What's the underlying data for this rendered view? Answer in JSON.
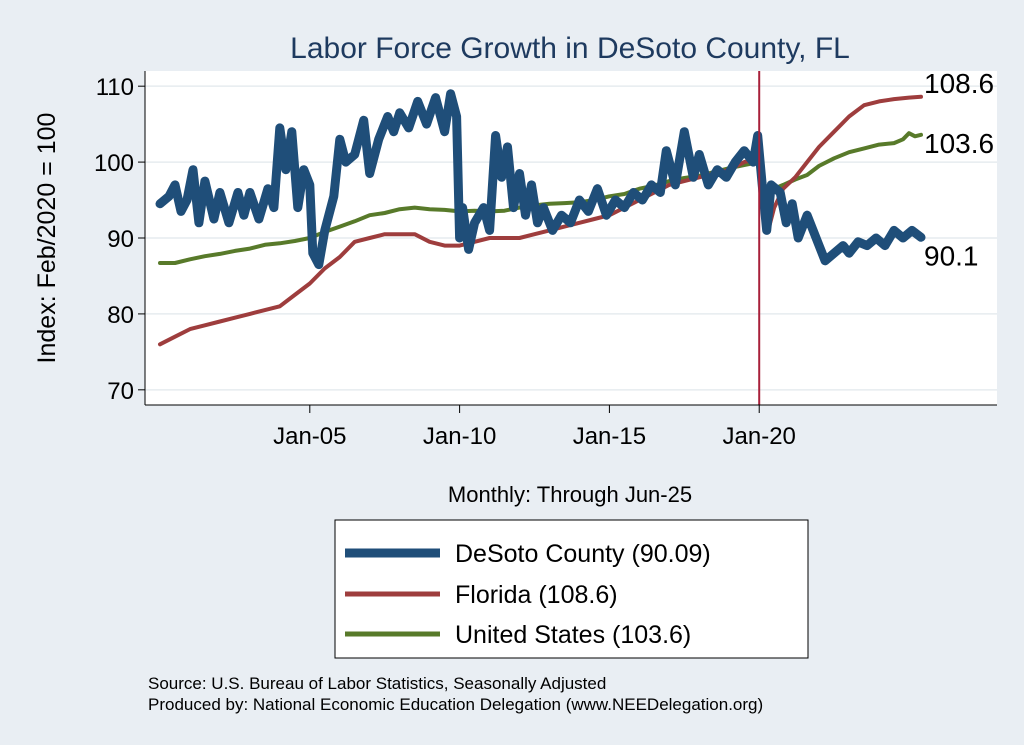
{
  "chart_data": {
    "type": "line",
    "title": "Labor Force Growth in DeSoto  County, FL",
    "ylabel": "Index: Feb/2020 = 100",
    "xlabel": "Monthly: Through Jun-25",
    "ylim": [
      68,
      112
    ],
    "yticks": [
      70,
      80,
      90,
      100,
      110
    ],
    "xticks": [
      {
        "label": "Jan-05",
        "year": 2005.0
      },
      {
        "label": "Jan-10",
        "year": 2010.0
      },
      {
        "label": "Jan-15",
        "year": 2015.0
      },
      {
        "label": "Jan-20",
        "year": 2020.0
      }
    ],
    "xlim": [
      2000.0,
      2028.4
    ],
    "reference_line": {
      "year": 2020.0,
      "color": "#a8203a"
    },
    "grid": true,
    "legend_position": "bottom",
    "series": [
      {
        "name": "DeSoto  County (90.09)",
        "end_label": "90.1",
        "color": "#1f4e79",
        "width": 9,
        "points": [
          [
            2000.0,
            94.5
          ],
          [
            2000.3,
            95.5
          ],
          [
            2000.5,
            97
          ],
          [
            2000.7,
            93.5
          ],
          [
            2000.9,
            95
          ],
          [
            2001.1,
            99
          ],
          [
            2001.3,
            92
          ],
          [
            2001.5,
            97.5
          ],
          [
            2001.8,
            92.5
          ],
          [
            2002.0,
            96
          ],
          [
            2002.3,
            92
          ],
          [
            2002.6,
            96
          ],
          [
            2002.8,
            93
          ],
          [
            2003.0,
            96
          ],
          [
            2003.3,
            92.5
          ],
          [
            2003.6,
            96.5
          ],
          [
            2003.8,
            94
          ],
          [
            2004.0,
            104.5
          ],
          [
            2004.2,
            99
          ],
          [
            2004.4,
            104
          ],
          [
            2004.6,
            94
          ],
          [
            2004.8,
            99
          ],
          [
            2005.0,
            97
          ],
          [
            2005.1,
            88
          ],
          [
            2005.3,
            86.5
          ],
          [
            2005.5,
            91
          ],
          [
            2005.8,
            95.5
          ],
          [
            2006.0,
            103
          ],
          [
            2006.2,
            100
          ],
          [
            2006.5,
            101
          ],
          [
            2006.8,
            105.5
          ],
          [
            2007.0,
            98.5
          ],
          [
            2007.3,
            103
          ],
          [
            2007.6,
            106
          ],
          [
            2007.8,
            104
          ],
          [
            2008.0,
            106.5
          ],
          [
            2008.3,
            104.5
          ],
          [
            2008.6,
            108
          ],
          [
            2008.9,
            105
          ],
          [
            2009.2,
            108.5
          ],
          [
            2009.5,
            104
          ],
          [
            2009.7,
            109
          ],
          [
            2009.9,
            106
          ],
          [
            2010.0,
            90
          ],
          [
            2010.1,
            94
          ],
          [
            2010.3,
            88.5
          ],
          [
            2010.5,
            92
          ],
          [
            2010.8,
            94
          ],
          [
            2011.0,
            91
          ],
          [
            2011.2,
            103.5
          ],
          [
            2011.4,
            98
          ],
          [
            2011.6,
            102
          ],
          [
            2011.8,
            94
          ],
          [
            2012.0,
            98.5
          ],
          [
            2012.2,
            93
          ],
          [
            2012.4,
            97
          ],
          [
            2012.6,
            92
          ],
          [
            2012.8,
            94
          ],
          [
            2013.1,
            91
          ],
          [
            2013.4,
            93
          ],
          [
            2013.7,
            92
          ],
          [
            2014.0,
            95
          ],
          [
            2014.3,
            93.5
          ],
          [
            2014.6,
            96.5
          ],
          [
            2014.9,
            93
          ],
          [
            2015.2,
            95
          ],
          [
            2015.5,
            94
          ],
          [
            2015.8,
            96
          ],
          [
            2016.1,
            95
          ],
          [
            2016.4,
            97
          ],
          [
            2016.7,
            96
          ],
          [
            2016.9,
            101.5
          ],
          [
            2017.2,
            97
          ],
          [
            2017.5,
            104
          ],
          [
            2017.8,
            98
          ],
          [
            2018.0,
            101
          ],
          [
            2018.3,
            97
          ],
          [
            2018.6,
            99
          ],
          [
            2018.9,
            98
          ],
          [
            2019.2,
            100
          ],
          [
            2019.5,
            101.5
          ],
          [
            2019.8,
            100
          ],
          [
            2019.95,
            103.5
          ],
          [
            2020.1,
            97
          ],
          [
            2020.25,
            91
          ],
          [
            2020.4,
            97
          ],
          [
            2020.7,
            96
          ],
          [
            2020.9,
            92
          ],
          [
            2021.1,
            94.5
          ],
          [
            2021.3,
            90
          ],
          [
            2021.6,
            93
          ],
          [
            2021.8,
            91
          ],
          [
            2022.0,
            89
          ],
          [
            2022.2,
            87
          ],
          [
            2022.5,
            88
          ],
          [
            2022.8,
            89
          ],
          [
            2023.0,
            88
          ],
          [
            2023.3,
            89.5
          ],
          [
            2023.6,
            89
          ],
          [
            2023.9,
            90
          ],
          [
            2024.2,
            89
          ],
          [
            2024.5,
            91
          ],
          [
            2024.8,
            90
          ],
          [
            2025.1,
            91
          ],
          [
            2025.4,
            90.09
          ]
        ]
      },
      {
        "name": "Florida (108.6)",
        "end_label": "108.6",
        "color": "#9e3d3d",
        "width": 4,
        "points": [
          [
            2000.0,
            76
          ],
          [
            2000.5,
            77
          ],
          [
            2001.0,
            78
          ],
          [
            2001.5,
            78.5
          ],
          [
            2002.0,
            79
          ],
          [
            2002.5,
            79.5
          ],
          [
            2003.0,
            80
          ],
          [
            2003.5,
            80.5
          ],
          [
            2004.0,
            81
          ],
          [
            2004.5,
            82.5
          ],
          [
            2005.0,
            84
          ],
          [
            2005.5,
            86
          ],
          [
            2006.0,
            87.5
          ],
          [
            2006.5,
            89.5
          ],
          [
            2007.0,
            90
          ],
          [
            2007.5,
            90.5
          ],
          [
            2008.0,
            90.5
          ],
          [
            2008.5,
            90.5
          ],
          [
            2009.0,
            89.5
          ],
          [
            2009.5,
            89
          ],
          [
            2010.0,
            89
          ],
          [
            2010.5,
            89.5
          ],
          [
            2011.0,
            90
          ],
          [
            2011.5,
            90
          ],
          [
            2012.0,
            90
          ],
          [
            2012.5,
            90.5
          ],
          [
            2013.0,
            91
          ],
          [
            2013.5,
            91.5
          ],
          [
            2014.0,
            92
          ],
          [
            2014.5,
            92.5
          ],
          [
            2015.0,
            93
          ],
          [
            2015.5,
            94
          ],
          [
            2016.0,
            95
          ],
          [
            2016.5,
            96
          ],
          [
            2017.0,
            97
          ],
          [
            2017.5,
            97.5
          ],
          [
            2018.0,
            98
          ],
          [
            2018.5,
            98.5
          ],
          [
            2019.0,
            99
          ],
          [
            2019.5,
            100
          ],
          [
            2020.0,
            100.5
          ],
          [
            2020.15,
            97
          ],
          [
            2020.3,
            91
          ],
          [
            2020.5,
            94
          ],
          [
            2020.8,
            96.5
          ],
          [
            2021.2,
            98
          ],
          [
            2021.6,
            100
          ],
          [
            2022.0,
            102
          ],
          [
            2022.5,
            104
          ],
          [
            2023.0,
            106
          ],
          [
            2023.5,
            107.5
          ],
          [
            2024.0,
            108
          ],
          [
            2024.5,
            108.3
          ],
          [
            2025.0,
            108.5
          ],
          [
            2025.4,
            108.6
          ]
        ]
      },
      {
        "name": "United States (103.6)",
        "end_label": "103.6",
        "color": "#587a2a",
        "width": 4,
        "points": [
          [
            2000.0,
            86.7
          ],
          [
            2000.5,
            86.7
          ],
          [
            2001.0,
            87.2
          ],
          [
            2001.5,
            87.6
          ],
          [
            2002.0,
            87.9
          ],
          [
            2002.5,
            88.3
          ],
          [
            2003.0,
            88.6
          ],
          [
            2003.5,
            89.1
          ],
          [
            2004.0,
            89.3
          ],
          [
            2004.5,
            89.6
          ],
          [
            2005.0,
            90
          ],
          [
            2005.5,
            90.8
          ],
          [
            2006.0,
            91.5
          ],
          [
            2006.5,
            92.2
          ],
          [
            2007.0,
            93
          ],
          [
            2007.5,
            93.3
          ],
          [
            2008.0,
            93.8
          ],
          [
            2008.5,
            94
          ],
          [
            2009.0,
            93.8
          ],
          [
            2009.5,
            93.7
          ],
          [
            2010.0,
            93.5
          ],
          [
            2010.5,
            93.6
          ],
          [
            2011.0,
            93.5
          ],
          [
            2011.5,
            93.6
          ],
          [
            2012.0,
            94
          ],
          [
            2012.5,
            94.3
          ],
          [
            2013.0,
            94.5
          ],
          [
            2013.5,
            94.6
          ],
          [
            2014.0,
            94.7
          ],
          [
            2014.5,
            95
          ],
          [
            2015.0,
            95.5
          ],
          [
            2015.5,
            95.8
          ],
          [
            2016.0,
            96.5
          ],
          [
            2016.5,
            96.9
          ],
          [
            2017.0,
            97.5
          ],
          [
            2017.5,
            97.9
          ],
          [
            2018.0,
            98.2
          ],
          [
            2018.5,
            98.7
          ],
          [
            2019.0,
            99.2
          ],
          [
            2019.5,
            99.6
          ],
          [
            2020.0,
            100
          ],
          [
            2020.15,
            97
          ],
          [
            2020.3,
            95.5
          ],
          [
            2020.5,
            96.5
          ],
          [
            2020.8,
            97
          ],
          [
            2021.2,
            97.7
          ],
          [
            2021.6,
            98.3
          ],
          [
            2022.0,
            99.5
          ],
          [
            2022.5,
            100.5
          ],
          [
            2023.0,
            101.3
          ],
          [
            2023.5,
            101.8
          ],
          [
            2024.0,
            102.3
          ],
          [
            2024.5,
            102.5
          ],
          [
            2024.8,
            103
          ],
          [
            2025.0,
            103.8
          ],
          [
            2025.2,
            103.4
          ],
          [
            2025.4,
            103.6
          ]
        ]
      }
    ],
    "legend_order": [
      0,
      1,
      2
    ]
  },
  "source_lines": [
    "Source: U.S. Bureau of Labor Statistics, Seasonally Adjusted",
    "Produced by: National Economic Education Delegation (www.NEEDelegation.org)"
  ]
}
